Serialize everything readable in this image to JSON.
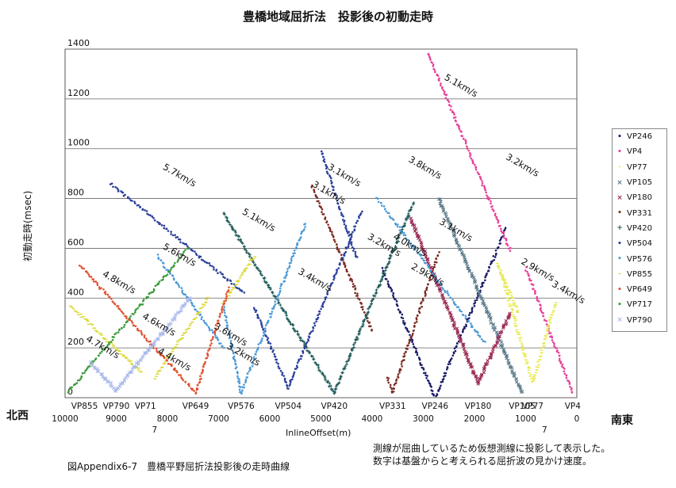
{
  "title": "豊橋地域屈折法　投影後の初動走時",
  "ylabel": "初動走時(msec)",
  "xlabel": "InlineOffset(m)",
  "north_label": "北西",
  "south_label": "南東",
  "caption": "図Appendix6-7　豊橋平野屈折法投影後の走時曲線",
  "note_line1": "測線が屈曲しているため仮想測線に投影して表示した。",
  "note_line2": "数字は基盤からと考えられる屈折波の見かけ速度。",
  "chart_data": {
    "type": "scatter",
    "xlim": [
      10000,
      0
    ],
    "ylim": [
      0,
      1400
    ],
    "yticks": [
      0,
      200,
      400,
      600,
      800,
      1000,
      1200,
      1400
    ],
    "xticks": [
      10000,
      9000,
      8000,
      7000,
      6000,
      5000,
      4000,
      3000,
      2000,
      1000,
      0
    ],
    "grid": "horizontal",
    "legend_position": "right",
    "vp_labels": [
      {
        "text": "VP855",
        "x": 9620
      },
      {
        "text": "VP790",
        "x": 9000
      },
      {
        "text": "VP71",
        "x": 8430
      },
      {
        "text": "7",
        "x": 8250
      },
      {
        "text": "VP649",
        "x": 7450
      },
      {
        "text": "VP576",
        "x": 6560
      },
      {
        "text": "VP504",
        "x": 5640
      },
      {
        "text": "VP420",
        "x": 4740
      },
      {
        "text": "VP331",
        "x": 3600
      },
      {
        "text": "VP246",
        "x": 2770
      },
      {
        "text": "VP180",
        "x": 1930
      },
      {
        "text": "VP105",
        "x": 1070
      },
      {
        "text": "VP77",
        "x": 860
      },
      {
        "text": "7",
        "x": 630
      },
      {
        "text": "VP4",
        "x": 80
      }
    ],
    "velocity_labels": [
      {
        "text": "5.1km/s",
        "x": 2600,
        "y": 1280
      },
      {
        "text": "5.7km/s",
        "x": 8100,
        "y": 920
      },
      {
        "text": "3.1km/s",
        "x": 4880,
        "y": 920
      },
      {
        "text": "3.8km/s",
        "x": 3300,
        "y": 950
      },
      {
        "text": "3.2km/s",
        "x": 1400,
        "y": 960
      },
      {
        "text": "3.1km/s",
        "x": 5180,
        "y": 850
      },
      {
        "text": "5.1km/s",
        "x": 6550,
        "y": 740
      },
      {
        "text": "3.2km/s",
        "x": 4100,
        "y": 640
      },
      {
        "text": "4.0km/s",
        "x": 3600,
        "y": 640
      },
      {
        "text": "3.1km/s",
        "x": 2700,
        "y": 700
      },
      {
        "text": "2.9km/s",
        "x": 3250,
        "y": 520
      },
      {
        "text": "2.9km/s",
        "x": 1100,
        "y": 540
      },
      {
        "text": "5.6km/s",
        "x": 8100,
        "y": 600
      },
      {
        "text": "3.4km/s",
        "x": 5460,
        "y": 500
      },
      {
        "text": "3.4km/s",
        "x": 500,
        "y": 450
      },
      {
        "text": "4.8km/s",
        "x": 9280,
        "y": 490
      },
      {
        "text": "4.6km/s",
        "x": 8500,
        "y": 320
      },
      {
        "text": "4.7km/s",
        "x": 9600,
        "y": 230
      },
      {
        "text": "4.4km/s",
        "x": 8200,
        "y": 180
      },
      {
        "text": "3.6km/s",
        "x": 7100,
        "y": 280
      },
      {
        "text": "3.2km/s",
        "x": 6850,
        "y": 200
      }
    ],
    "series": [
      {
        "name": "VP246",
        "color": "#1a1a66",
        "marker": "•",
        "shot_x": 2770,
        "segments": [
          [
            [
              2770,
              0
            ],
            [
              3800,
              520
            ]
          ],
          [
            [
              2770,
              0
            ],
            [
              1380,
              680
            ]
          ]
        ]
      },
      {
        "name": "VP4",
        "color": "#e8409a",
        "marker": "•",
        "shot_x": 80,
        "segments": [
          [
            [
              80,
              20
            ],
            [
              1000,
              520
            ]
          ],
          [
            [
              2900,
              1380
            ],
            [
              1300,
              590
            ]
          ]
        ]
      },
      {
        "name": "VP77",
        "color": "#e8e84a",
        "marker": "-",
        "shot_x": 860,
        "segments": [
          [
            [
              860,
              60
            ],
            [
              1480,
              500
            ]
          ],
          [
            [
              860,
              60
            ],
            [
              420,
              380
            ]
          ],
          [
            [
              1560,
              540
            ],
            [
              1140,
              340
            ]
          ]
        ]
      },
      {
        "name": "VP105",
        "color": "#5a7a8a",
        "marker": "×",
        "shot_x": 1070,
        "segments": [
          [
            [
              1070,
              20
            ],
            [
              2700,
              800
            ]
          ]
        ]
      },
      {
        "name": "VP180",
        "color": "#9a2a55",
        "marker": "×",
        "shot_x": 1930,
        "segments": [
          [
            [
              1930,
              60
            ],
            [
              3250,
              720
            ]
          ],
          [
            [
              1930,
              60
            ],
            [
              1300,
              340
            ]
          ]
        ]
      },
      {
        "name": "VP331",
        "color": "#7a2a22",
        "marker": "•",
        "shot_x": 3600,
        "segments": [
          [
            [
              3600,
              20
            ],
            [
              3700,
              80
            ]
          ],
          [
            [
              3600,
              20
            ],
            [
              2700,
              580
            ]
          ],
          [
            [
              5180,
              850
            ],
            [
              4000,
              270
            ]
          ]
        ]
      },
      {
        "name": "VP420",
        "color": "#1f5a5a",
        "marker": "+",
        "shot_x": 4740,
        "segments": [
          [
            [
              4740,
              20
            ],
            [
              3200,
              780
            ]
          ],
          [
            [
              4740,
              20
            ],
            [
              6900,
              740
            ]
          ]
        ]
      },
      {
        "name": "VP504",
        "color": "#2a3e9a",
        "marker": "•",
        "shot_x": 5640,
        "segments": [
          [
            [
              5640,
              40
            ],
            [
              4200,
              750
            ]
          ],
          [
            [
              5640,
              40
            ],
            [
              6300,
              360
            ]
          ],
          [
            [
              9100,
              860
            ],
            [
              6500,
              420
            ]
          ],
          [
            [
              5000,
              990
            ],
            [
              4300,
              560
            ]
          ]
        ]
      },
      {
        "name": "VP576",
        "color": "#4a9ad8",
        "marker": "•",
        "shot_x": 6560,
        "segments": [
          [
            [
              6560,
              20
            ],
            [
              5300,
              700
            ]
          ],
          [
            [
              6560,
              20
            ],
            [
              6900,
              360
            ]
          ],
          [
            [
              8200,
              570
            ],
            [
              6900,
              200
            ]
          ],
          [
            [
              3900,
              800
            ],
            [
              1800,
              220
            ]
          ]
        ]
      },
      {
        "name": "VP855",
        "color": "#d8d830",
        "marker": "-",
        "shot_x": 9620,
        "segments": [
          [
            [
              9900,
              370
            ],
            [
              8500,
              100
            ]
          ],
          [
            [
              8250,
              80
            ],
            [
              7200,
              400
            ]
          ],
          [
            [
              6300,
              570
            ],
            [
              6900,
              380
            ]
          ]
        ]
      },
      {
        "name": "VP649",
        "color": "#e05030",
        "marker": "•",
        "shot_x": 7450,
        "segments": [
          [
            [
              7450,
              20
            ],
            [
              6800,
              440
            ]
          ],
          [
            [
              9700,
              530
            ],
            [
              7450,
              20
            ]
          ]
        ]
      },
      {
        "name": "VP717",
        "color": "#3a9a3a",
        "marker": "•",
        "shot_x": 9900,
        "segments": [
          [
            [
              9950,
              20
            ],
            [
              7600,
              600
            ]
          ]
        ]
      },
      {
        "name": "VP790",
        "color": "#a8b8e8",
        "marker": "×",
        "shot_x": 9000,
        "segments": [
          [
            [
              9000,
              30
            ],
            [
              7550,
              400
            ]
          ],
          [
            [
              9000,
              30
            ],
            [
              9500,
              140
            ]
          ]
        ]
      }
    ]
  }
}
